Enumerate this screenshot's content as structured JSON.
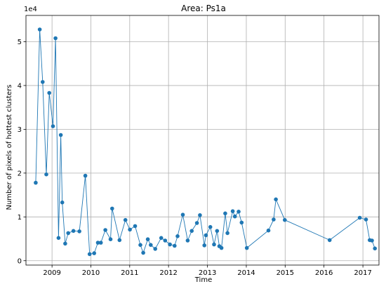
{
  "chart_data": {
    "type": "line",
    "title": "Area: Ps1a",
    "xlabel": "Time",
    "ylabel": "Number of pixels of hottest clusters",
    "y_offset_text": "1e4",
    "y_scale": 10000,
    "xlim": [
      "2008-05-01",
      "2017-06-01"
    ],
    "ylim": [
      -0.1,
      5.6
    ],
    "x_ticks": [
      {
        "date": "2009-01-01",
        "label": "2009"
      },
      {
        "date": "2010-01-01",
        "label": "2010"
      },
      {
        "date": "2011-01-01",
        "label": "2011"
      },
      {
        "date": "2012-01-01",
        "label": "2012"
      },
      {
        "date": "2013-01-01",
        "label": "2013"
      },
      {
        "date": "2014-01-01",
        "label": "2014"
      },
      {
        "date": "2015-01-01",
        "label": "2015"
      },
      {
        "date": "2016-01-01",
        "label": "2016"
      },
      {
        "date": "2017-01-01",
        "label": "2017"
      }
    ],
    "y_ticks": [
      {
        "value": 0,
        "label": "0"
      },
      {
        "value": 1,
        "label": "1"
      },
      {
        "value": 2,
        "label": "2"
      },
      {
        "value": 3,
        "label": "3"
      },
      {
        "value": 4,
        "label": "4"
      },
      {
        "value": 5,
        "label": "5"
      }
    ],
    "grid": true,
    "color": "#1f77b4",
    "series": [
      {
        "x": [
          "2008-08-01",
          "2008-09-07",
          "2008-10-05",
          "2008-11-08",
          "2008-12-06",
          "2009-01-10",
          "2009-02-03",
          "2009-03-03",
          "2009-03-24",
          "2009-04-07",
          "2009-05-05",
          "2009-06-02",
          "2009-07-21",
          "2009-09-15",
          "2009-11-10",
          "2009-12-20",
          "2010-02-01",
          "2010-03-08",
          "2010-04-05",
          "2010-05-17",
          "2010-07-05",
          "2010-07-20",
          "2010-09-27",
          "2010-11-22",
          "2011-01-03",
          "2011-02-21",
          "2011-04-11",
          "2011-05-08",
          "2011-06-20",
          "2011-07-18",
          "2011-08-29",
          "2011-10-24",
          "2011-11-30",
          "2012-01-14",
          "2012-02-27",
          "2012-03-26",
          "2012-05-14",
          "2012-06-29",
          "2012-08-06",
          "2012-09-24",
          "2012-10-22",
          "2012-12-03",
          "2012-12-17",
          "2013-01-28",
          "2013-03-04",
          "2013-04-01",
          "2013-04-22",
          "2013-05-13",
          "2013-06-17",
          "2013-07-08",
          "2013-08-26",
          "2013-09-16",
          "2013-10-21",
          "2013-11-18",
          "2014-01-06",
          "2014-07-28",
          "2014-09-15",
          "2014-10-06",
          "2014-12-29",
          "2016-02-23",
          "2016-12-02",
          "2017-01-30",
          "2017-03-06",
          "2017-03-27",
          "2017-04-24"
        ],
        "values": [
          1.78,
          5.28,
          4.08,
          1.97,
          3.83,
          3.07,
          5.08,
          0.52,
          2.87,
          1.33,
          0.39,
          0.63,
          0.68,
          0.67,
          1.94,
          0.15,
          0.17,
          0.41,
          0.41,
          0.7,
          0.49,
          1.19,
          0.47,
          0.93,
          0.71,
          0.79,
          0.36,
          0.18,
          0.49,
          0.36,
          0.27,
          0.52,
          0.46,
          0.37,
          0.34,
          0.56,
          1.05,
          0.46,
          0.68,
          0.86,
          1.04,
          0.35,
          0.58,
          0.77,
          0.37,
          0.68,
          0.33,
          0.29,
          1.08,
          0.63,
          1.13,
          1.01,
          1.12,
          0.87,
          0.29,
          0.69,
          0.94,
          1.4,
          0.93,
          0.47,
          0.98,
          0.94,
          0.47,
          0.46,
          0.28
        ]
      }
    ]
  }
}
